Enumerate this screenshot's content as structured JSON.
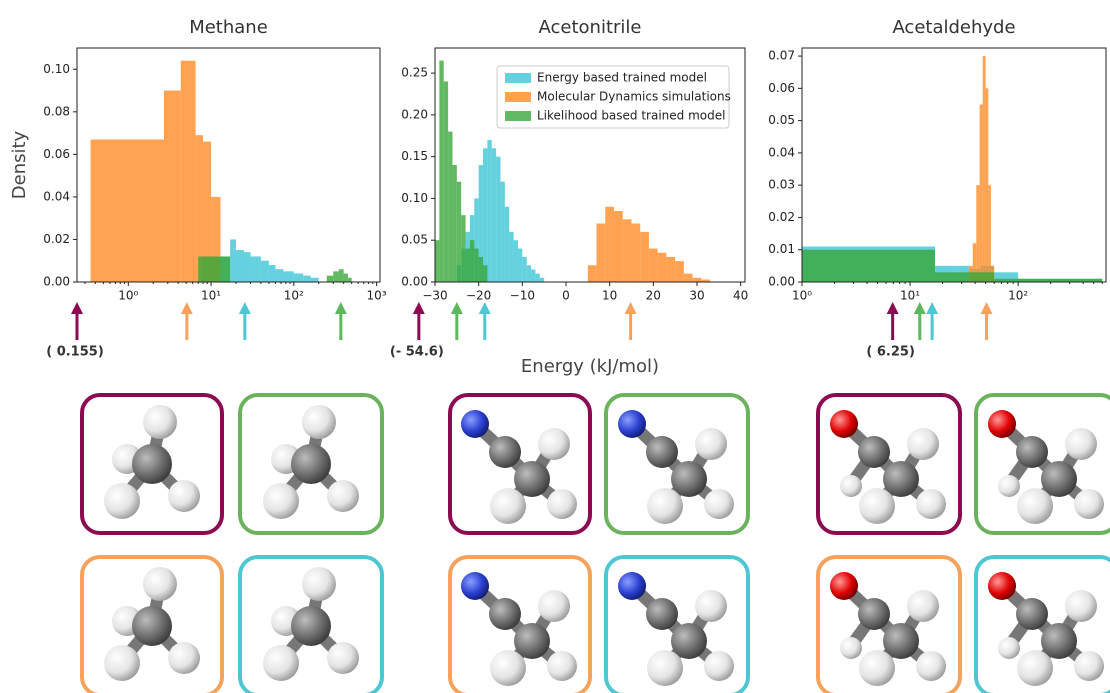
{
  "chart_data": [
    {
      "type": "histogram",
      "title": "Methane",
      "ylabel": "Density",
      "xscale": "log",
      "xlim": [
        0.24,
        1100
      ],
      "ylim": [
        0,
        0.11
      ],
      "xticks": [
        {
          "value": 1,
          "label": "10⁰"
        },
        {
          "value": 10,
          "label": "10¹"
        },
        {
          "value": 100,
          "label": "10²"
        },
        {
          "value": 1000,
          "label": "10³"
        }
      ],
      "yticks": [
        {
          "value": 0,
          "label": "0.00"
        },
        {
          "value": 0.02,
          "label": "0.02"
        },
        {
          "value": 0.04,
          "label": "0.04"
        },
        {
          "value": 0.06,
          "label": "0.06"
        },
        {
          "value": 0.08,
          "label": "0.08"
        },
        {
          "value": 0.1,
          "label": "0.10"
        }
      ],
      "series": [
        {
          "name": "Energy based trained model",
          "color": "#3cc6d6",
          "bins": [
            8,
            17,
            20,
            25,
            30,
            40,
            50,
            60,
            75,
            100,
            130,
            160,
            200
          ],
          "values": [
            0.012,
            0.02,
            0.015,
            0.014,
            0.012,
            0.01,
            0.008,
            0.006,
            0.005,
            0.004,
            0.003,
            0.002
          ]
        },
        {
          "name": "Molecular Dynamics simulations",
          "color": "#ff8c28",
          "bins": [
            0.35,
            2.7,
            4.3,
            6.5,
            8,
            10,
            13
          ],
          "values": [
            0.067,
            0.09,
            0.104,
            0.069,
            0.066,
            0.04
          ]
        },
        {
          "name": "Likelihood based trained model",
          "color": "#3aa83a",
          "bins": [
            7,
            17,
            250,
            300,
            350,
            400,
            450,
            500
          ],
          "values": [
            0.012,
            0,
            0.003,
            0.005,
            0.006,
            0.004,
            0.002
          ]
        }
      ],
      "arrows": [
        {
          "color": "#8b0a50",
          "x": 0.24
        },
        {
          "color": "#f5a25d",
          "x": 5.1
        },
        {
          "color": "#4fc6d4",
          "x": 25.6
        },
        {
          "color": "#5cb85c",
          "x": 370
        }
      ],
      "annotation": "( 0.155)"
    },
    {
      "type": "histogram",
      "title": "Acetonitrile",
      "xlabel": "Energy (kJ/mol)",
      "xscale": "linear",
      "xlim": [
        -30,
        41
      ],
      "ylim": [
        0,
        0.28
      ],
      "legend": "upper right",
      "xticks": [
        {
          "value": -30,
          "label": "−30"
        },
        {
          "value": -20,
          "label": "−20"
        },
        {
          "value": -10,
          "label": "−10"
        },
        0,
        10,
        20,
        30,
        40
      ],
      "yticks": [
        {
          "value": 0,
          "label": "0.00"
        },
        {
          "value": 0.05,
          "label": "0.05"
        },
        {
          "value": 0.1,
          "label": "0.10"
        },
        {
          "value": 0.15,
          "label": "0.15"
        },
        {
          "value": 0.2,
          "label": "0.20"
        },
        {
          "value": 0.25,
          "label": "0.25"
        }
      ],
      "series": [
        {
          "name": "Energy based trained model",
          "color": "#3cc6d6",
          "bins": [
            -25,
            -24,
            -23,
            -22,
            -21,
            -20,
            -19,
            -18,
            -17,
            -16,
            -15,
            -14,
            -13,
            -12,
            -11,
            -10,
            -9,
            -8,
            -7,
            -6,
            -5
          ],
          "values": [
            0.02,
            0.04,
            0.06,
            0.08,
            0.1,
            0.14,
            0.16,
            0.17,
            0.16,
            0.15,
            0.12,
            0.09,
            0.06,
            0.05,
            0.04,
            0.03,
            0.02,
            0.015,
            0.01,
            0.005
          ]
        },
        {
          "name": "Molecular Dynamics simulations",
          "color": "#ff8c28",
          "bins": [
            5,
            7,
            9,
            11,
            13,
            15,
            17,
            19,
            21,
            23,
            25,
            27,
            29,
            31,
            33
          ],
          "values": [
            0.02,
            0.07,
            0.09,
            0.085,
            0.075,
            0.07,
            0.06,
            0.04,
            0.035,
            0.03,
            0.025,
            0.01,
            0.005,
            0.003
          ]
        },
        {
          "name": "Likelihood based trained model",
          "color": "#3aa83a",
          "bins": [
            -30,
            -29,
            -28,
            -27,
            -26,
            -25,
            -24,
            -23,
            -22,
            -21,
            -20,
            -19,
            -18
          ],
          "values": [
            0.05,
            0.265,
            0.24,
            0.18,
            0.14,
            0.12,
            0.08,
            0.04,
            0.05,
            0.04,
            0.03,
            0.02
          ]
        }
      ],
      "arrows": [
        {
          "color": "#8b0a50",
          "x": -33.7
        },
        {
          "color": "#5cb85c",
          "x": -25
        },
        {
          "color": "#4fc6d4",
          "x": -18.6
        },
        {
          "color": "#f5a25d",
          "x": 14.8
        }
      ],
      "annotation": "(- 54.6)"
    },
    {
      "type": "histogram",
      "title": "Acetaldehyde",
      "xscale": "log",
      "xlim": [
        1,
        650
      ],
      "ylim": [
        0,
        0.0725
      ],
      "xticks": [
        {
          "value": 1,
          "label": "10⁰"
        },
        {
          "value": 10,
          "label": "10¹"
        },
        {
          "value": 100,
          "label": "10²"
        }
      ],
      "yticks": [
        {
          "value": 0,
          "label": "0.00"
        },
        {
          "value": 0.01,
          "label": "0.01"
        },
        {
          "value": 0.02,
          "label": "0.02"
        },
        {
          "value": 0.03,
          "label": "0.03"
        },
        {
          "value": 0.04,
          "label": "0.04"
        },
        {
          "value": 0.05,
          "label": "0.05"
        },
        {
          "value": 0.06,
          "label": "0.06"
        },
        {
          "value": 0.07,
          "label": "0.07"
        }
      ],
      "series": [
        {
          "name": "Energy based trained model",
          "color": "#3cc6d6",
          "bins": [
            1,
            17,
            25,
            35,
            45,
            60,
            100,
            600
          ],
          "values": [
            0.011,
            0.005,
            0.005,
            0.004,
            0.005,
            0.003,
            0.001
          ]
        },
        {
          "name": "Molecular Dynamics simulations",
          "color": "#ff8c28",
          "bins": [
            35,
            38,
            41,
            44,
            47,
            50,
            53,
            56,
            60
          ],
          "values": [
            0.005,
            0.012,
            0.03,
            0.055,
            0.07,
            0.06,
            0.03,
            0.005
          ]
        },
        {
          "name": "Likelihood based trained model",
          "color": "#3aa83a",
          "bins": [
            1,
            17,
            60,
            600
          ],
          "values": [
            0.01,
            0.003,
            0.001
          ]
        }
      ],
      "arrows": [
        {
          "color": "#8b0a50",
          "x": 6.9
        },
        {
          "color": "#5cb85c",
          "x": 12.3
        },
        {
          "color": "#4fc6d4",
          "x": 16
        },
        {
          "color": "#f5a25d",
          "x": 51
        }
      ],
      "annotation": "( 6.25)"
    }
  ]
}
